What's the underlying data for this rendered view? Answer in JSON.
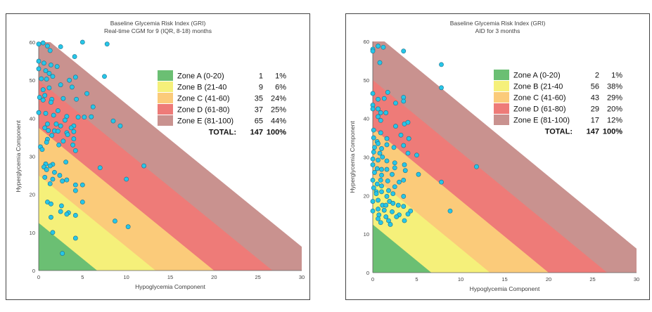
{
  "chart_data": [
    {
      "type": "scatter",
      "title": "Baseline Glycemia Risk Index (GRI)",
      "subtitle": "Real-time CGM for 9 (IQR, 8-18) months",
      "xlabel": "Hypoglycemia Component",
      "ylabel": "Hyperglycemia Component",
      "xlim": [
        0,
        30
      ],
      "ylim": [
        0,
        60
      ],
      "xticks": [
        "0",
        "5",
        "10",
        "15",
        "20",
        "25",
        "30"
      ],
      "yticks": [
        "0",
        "10",
        "20",
        "30",
        "40",
        "50",
        "60"
      ],
      "grid": false,
      "legend_position": "upper-right",
      "zones": [
        {
          "label": "Zone A (0-20)",
          "count": "1",
          "pct": "1%",
          "color": "#6bbf73"
        },
        {
          "label": "Zone B (21-40",
          "count": "9",
          "pct": "6%",
          "color": "#f5f07a"
        },
        {
          "label": "Zone C (41-60)",
          "count": "35",
          "pct": "24%",
          "color": "#fbcb7a"
        },
        {
          "label": "Zone D (61-80)",
          "count": "37",
          "pct": "25%",
          "color": "#ee7b78"
        },
        {
          "label": "Zone E (81-100)",
          "count": "65",
          "pct": "44%",
          "color": "#c9928f"
        }
      ],
      "total_label": "TOTAL:",
      "total_count": "147",
      "total_pct": "100%",
      "point_color": "#26c6e8",
      "points": [
        [
          0,
          59.5
        ],
        [
          0.5,
          59.8
        ],
        [
          1,
          59
        ],
        [
          1.3,
          57.8
        ],
        [
          0,
          55
        ],
        [
          0.6,
          54.5
        ],
        [
          1.4,
          54
        ],
        [
          2.1,
          53.6
        ],
        [
          0,
          53
        ],
        [
          0.8,
          52.5
        ],
        [
          1.2,
          51.8
        ],
        [
          1.6,
          51
        ],
        [
          0.3,
          50.4
        ],
        [
          0.9,
          50.3
        ],
        [
          3.5,
          50
        ],
        [
          4.2,
          50.8
        ],
        [
          3.8,
          48.2
        ],
        [
          2.5,
          48.8
        ],
        [
          1.2,
          48
        ],
        [
          0.5,
          47.5
        ],
        [
          0.1,
          45.5
        ],
        [
          0.7,
          46
        ],
        [
          1.5,
          45
        ],
        [
          2.8,
          45.2
        ],
        [
          4.3,
          45
        ],
        [
          5.5,
          46.5
        ],
        [
          0.5,
          44.8
        ],
        [
          1.4,
          44.2
        ],
        [
          2.2,
          42
        ],
        [
          0,
          41.5
        ],
        [
          0.8,
          41.3
        ],
        [
          1.7,
          40.8
        ],
        [
          3.2,
          40.5
        ],
        [
          4.5,
          40.3
        ],
        [
          5.2,
          40.3
        ],
        [
          6,
          40.4
        ],
        [
          3,
          39.5
        ],
        [
          1,
          38.5
        ],
        [
          2,
          38.5
        ],
        [
          2.5,
          38
        ],
        [
          4,
          38
        ],
        [
          3.7,
          37.5
        ],
        [
          8.5,
          39.3
        ],
        [
          9.3,
          38
        ],
        [
          0.7,
          37.5
        ],
        [
          1.1,
          36.8
        ],
        [
          1.8,
          36.7
        ],
        [
          2.2,
          36.6
        ],
        [
          3.2,
          36.2
        ],
        [
          4,
          36.5
        ],
        [
          1.5,
          35.5
        ],
        [
          3.3,
          35.7
        ],
        [
          1,
          34.5
        ],
        [
          2.8,
          34
        ],
        [
          4,
          34.6
        ],
        [
          0.9,
          33.7
        ],
        [
          2.3,
          33
        ],
        [
          3.9,
          33
        ],
        [
          0.2,
          32.5
        ],
        [
          0.4,
          31.8
        ],
        [
          4.2,
          31.5
        ],
        [
          3.1,
          28.5
        ],
        [
          0.8,
          28
        ],
        [
          0.6,
          27.2
        ],
        [
          1.6,
          27.9
        ],
        [
          1.3,
          27.5
        ],
        [
          7,
          27
        ],
        [
          0.9,
          26.5
        ],
        [
          1.8,
          25.8
        ],
        [
          2.4,
          25
        ],
        [
          0.7,
          24.5
        ],
        [
          1.6,
          24
        ],
        [
          2.7,
          23.5
        ],
        [
          3.2,
          23.8
        ],
        [
          1.3,
          22.8
        ],
        [
          4.2,
          22.5
        ],
        [
          5,
          22.5
        ],
        [
          4.2,
          21
        ],
        [
          10,
          24
        ],
        [
          12,
          27.5
        ],
        [
          1,
          18
        ],
        [
          1.4,
          17.5
        ],
        [
          5,
          18
        ],
        [
          2.6,
          17
        ],
        [
          2.5,
          15.5
        ],
        [
          3.4,
          15.2
        ],
        [
          4.2,
          14.5
        ],
        [
          1.4,
          14
        ],
        [
          3.2,
          14.8
        ],
        [
          8.7,
          13
        ],
        [
          10.2,
          11.5
        ],
        [
          1.6,
          10
        ],
        [
          4.2,
          8.5
        ],
        [
          2.7,
          4.5
        ],
        [
          7.5,
          51
        ],
        [
          7.8,
          59.5
        ],
        [
          5,
          60
        ],
        [
          2.5,
          58.8
        ],
        [
          4.1,
          56.2
        ],
        [
          6.2,
          43
        ]
      ]
    },
    {
      "type": "scatter",
      "title": "Baseline Glycemia Risk Index (GRI)",
      "subtitle": "AID for 3 months",
      "xlabel": "Hypoglycemia Component",
      "ylabel": "Hyperglycemia Component",
      "xlim": [
        0,
        30
      ],
      "ylim": [
        0,
        60
      ],
      "xticks": [
        "0",
        "5",
        "10",
        "15",
        "20",
        "25",
        "30"
      ],
      "yticks": [
        "0",
        "10",
        "20",
        "30",
        "40",
        "50",
        "60"
      ],
      "grid": false,
      "legend_position": "upper-right",
      "zones": [
        {
          "label": "Zone A (0-20)",
          "count": "2",
          "pct": "1%",
          "color": "#6bbf73"
        },
        {
          "label": "Zone B (21-40",
          "count": "56",
          "pct": "38%",
          "color": "#f5f07a"
        },
        {
          "label": "Zone C (41-60)",
          "count": "43",
          "pct": "29%",
          "color": "#fbcb7a"
        },
        {
          "label": "Zone D (61-80)",
          "count": "29",
          "pct": "20%",
          "color": "#ee7b78"
        },
        {
          "label": "Zone E (81-100)",
          "count": "17",
          "pct": "12%",
          "color": "#c9928f"
        }
      ],
      "total_label": "TOTAL:",
      "total_count": "147",
      "total_pct": "100%",
      "point_color": "#26c6e8",
      "points": [
        [
          0,
          58
        ],
        [
          0,
          57.5
        ],
        [
          0.6,
          58.8
        ],
        [
          1.2,
          58.5
        ],
        [
          3.5,
          57.5
        ],
        [
          0.8,
          54.5
        ],
        [
          7.8,
          54
        ],
        [
          7.8,
          48
        ],
        [
          0,
          46.5
        ],
        [
          1.7,
          46.8
        ],
        [
          0.6,
          45
        ],
        [
          1.3,
          45.2
        ],
        [
          3.5,
          45.5
        ],
        [
          2.6,
          44
        ],
        [
          3.5,
          44.5
        ],
        [
          0,
          43.5
        ],
        [
          0,
          42.5
        ],
        [
          0.6,
          42.5
        ],
        [
          0.9,
          41.5
        ],
        [
          1.5,
          41.5
        ],
        [
          0.6,
          40.5
        ],
        [
          0.9,
          39.5
        ],
        [
          3.6,
          38.6
        ],
        [
          4,
          39
        ],
        [
          2.6,
          38
        ],
        [
          0.1,
          37
        ],
        [
          0.9,
          36.3
        ],
        [
          3.2,
          35.7
        ],
        [
          1.6,
          34.8
        ],
        [
          4.1,
          34.8
        ],
        [
          1.6,
          33.2
        ],
        [
          0.1,
          35
        ],
        [
          0.5,
          34
        ],
        [
          0.6,
          33.5
        ],
        [
          0.2,
          32.5
        ],
        [
          1,
          32.2
        ],
        [
          2.4,
          32.5
        ],
        [
          3.5,
          33
        ],
        [
          0.1,
          31.3
        ],
        [
          0.8,
          31
        ],
        [
          4,
          31
        ],
        [
          5,
          30.5
        ],
        [
          1.1,
          30
        ],
        [
          0,
          29.5
        ],
        [
          0.6,
          29.2
        ],
        [
          1.6,
          29
        ],
        [
          2.5,
          28.5
        ],
        [
          3.6,
          28
        ],
        [
          0,
          28
        ],
        [
          0.5,
          27
        ],
        [
          1,
          26.8
        ],
        [
          1.6,
          26.8
        ],
        [
          2.5,
          27.2
        ],
        [
          3.7,
          26.5
        ],
        [
          0.2,
          26
        ],
        [
          1,
          25.3
        ],
        [
          2.2,
          25.5
        ],
        [
          5.2,
          25.5
        ],
        [
          0,
          24
        ],
        [
          0.9,
          24
        ],
        [
          1.7,
          23.8
        ],
        [
          0.5,
          23
        ],
        [
          1,
          22.5
        ],
        [
          2.5,
          22.3
        ],
        [
          3,
          23.5
        ],
        [
          3.5,
          24
        ],
        [
          0.1,
          22
        ],
        [
          0.4,
          21
        ],
        [
          1,
          21
        ],
        [
          1.8,
          21.3
        ],
        [
          2.3,
          20.5
        ],
        [
          7.8,
          23.5
        ],
        [
          11.8,
          27.5
        ],
        [
          0.4,
          20.5
        ],
        [
          1.6,
          19.8
        ],
        [
          3.5,
          19.8
        ],
        [
          0.6,
          18.8
        ],
        [
          1.9,
          18.5
        ],
        [
          2.3,
          18
        ],
        [
          0,
          18.5
        ],
        [
          1.1,
          17.5
        ],
        [
          1.5,
          17.5
        ],
        [
          2.9,
          17.5
        ],
        [
          3.5,
          17.2
        ],
        [
          4.3,
          16
        ],
        [
          8.8,
          16
        ],
        [
          0.6,
          16.5
        ],
        [
          1.3,
          16.2
        ],
        [
          2.2,
          15.8
        ],
        [
          0,
          16
        ],
        [
          3,
          15
        ],
        [
          4,
          15.2
        ],
        [
          0.7,
          15
        ],
        [
          1.5,
          14.5
        ],
        [
          2.7,
          14.5
        ],
        [
          0.6,
          14
        ],
        [
          1.8,
          13.5
        ],
        [
          3.6,
          13.5
        ],
        [
          0.9,
          13
        ],
        [
          2,
          12.5
        ]
      ]
    }
  ]
}
